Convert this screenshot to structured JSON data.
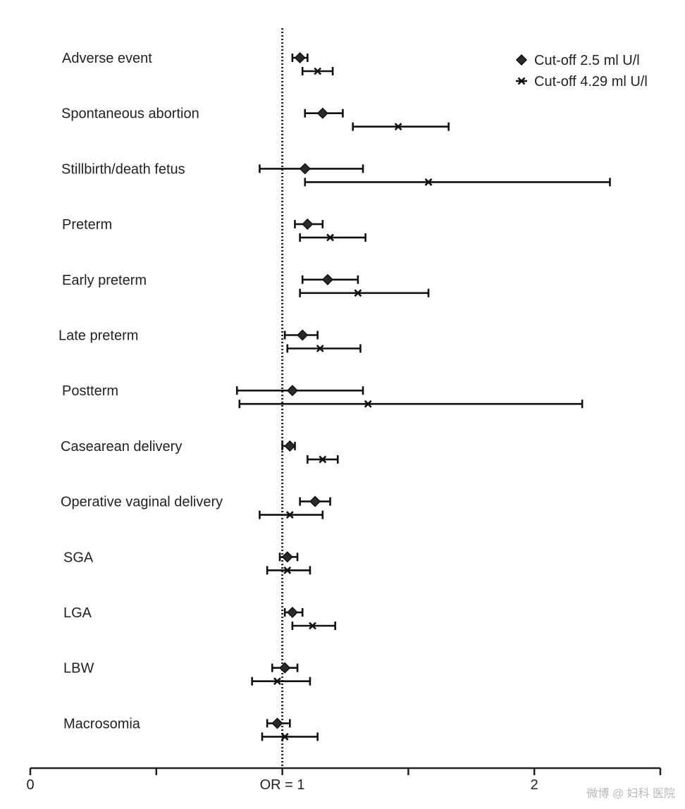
{
  "chart_data": {
    "type": "forest",
    "title": "",
    "xlabel": "",
    "xlim": [
      0,
      2.5
    ],
    "reference_line": {
      "x": 1,
      "style": "dotted"
    },
    "x_ticks": [
      0,
      0.5,
      1,
      1.5,
      2,
      2.5
    ],
    "x_tick_labels": [
      {
        "x": 0,
        "label": "0"
      },
      {
        "x": 1,
        "label": "OR = 1"
      },
      {
        "x": 2,
        "label": "2"
      }
    ],
    "legend": {
      "position": "top-right",
      "entries": [
        {
          "name": "Cut-off 2.5 mIU/l",
          "label": "Cut-off 2.5 ml U/l",
          "marker": "diamond"
        },
        {
          "name": "Cut-off 4.29 mIU/l",
          "label": "Cut-off 4.29 ml U/l",
          "marker": "x-cross"
        }
      ]
    },
    "outcomes": [
      "Adverse event",
      "Spontaneous abortion",
      "Stillbirth/death fetus",
      "Preterm",
      "Early preterm",
      "Late preterm",
      "Postterm",
      "Casearean delivery",
      "Operative vaginal delivery",
      "SGA",
      "LGA",
      "LBW",
      "Macrosomia"
    ],
    "series": [
      {
        "name": "Cut-off 2.5 mIU/l",
        "marker": "diamond",
        "or": [
          1.07,
          1.16,
          1.09,
          1.1,
          1.18,
          1.08,
          1.04,
          1.03,
          1.13,
          1.02,
          1.04,
          1.01,
          0.98
        ],
        "lower": [
          1.04,
          1.09,
          0.91,
          1.05,
          1.08,
          1.01,
          0.82,
          1.0,
          1.07,
          0.99,
          1.01,
          0.96,
          0.94
        ],
        "upper": [
          1.1,
          1.24,
          1.32,
          1.16,
          1.3,
          1.14,
          1.32,
          1.05,
          1.19,
          1.06,
          1.08,
          1.06,
          1.03
        ]
      },
      {
        "name": "Cut-off 4.29 mIU/l",
        "marker": "x-cross",
        "or": [
          1.14,
          1.46,
          1.58,
          1.19,
          1.3,
          1.15,
          1.34,
          1.16,
          1.03,
          1.02,
          1.12,
          0.98,
          1.01
        ],
        "lower": [
          1.08,
          1.28,
          1.09,
          1.07,
          1.07,
          1.02,
          0.83,
          1.1,
          0.91,
          0.94,
          1.04,
          0.88,
          0.92
        ],
        "upper": [
          1.2,
          1.66,
          2.3,
          1.33,
          1.58,
          1.31,
          2.19,
          1.22,
          1.16,
          1.11,
          1.21,
          1.11,
          1.14
        ]
      }
    ]
  },
  "watermark": "微博 @ 妇科 医院"
}
